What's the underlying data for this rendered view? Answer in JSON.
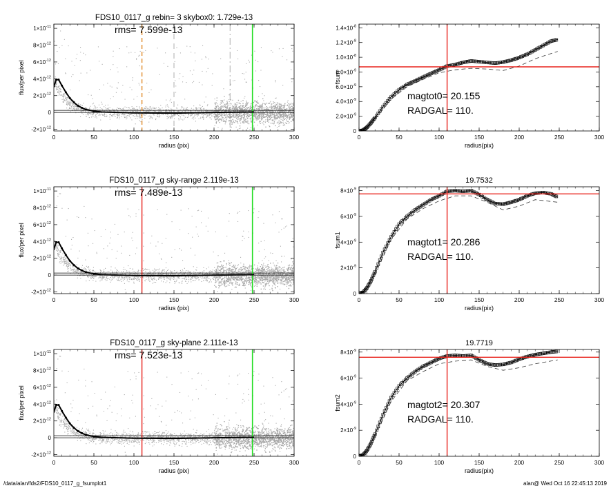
{
  "footer": {
    "left": "/data/alan/fds2/FDS10_0117_g_fsumplot1",
    "right": "alan@  Wed Oct 16 22:45:13 2019"
  },
  "colors": {
    "points": "#a8a8a8",
    "profile": "#000000",
    "red": "#e8211a",
    "green": "#22dd22",
    "orange": "#e08a28",
    "gray_line": "#999999"
  },
  "chart_data": [
    {
      "type": "scatter",
      "panel": "left-1",
      "title": "FDS10_0117_g rebin= 3    skybox0:  1.729e-13",
      "annotation": "rms= 7.599e-13",
      "xlabel": "radius (pix)",
      "ylabel": "flux/per pixel",
      "xlim": [
        0,
        300
      ],
      "ylim": [
        -2.2e-12,
        1.05e-11
      ],
      "xticks": [
        0,
        50,
        100,
        150,
        200,
        250,
        300
      ],
      "yticks": [
        {
          "v": 1e-11,
          "m": "1×10",
          "e": "-11"
        },
        {
          "v": 8e-12,
          "m": "8×10",
          "e": "-12"
        },
        {
          "v": 6e-12,
          "m": "6×10",
          "e": "-12"
        },
        {
          "v": 4e-12,
          "m": "4×10",
          "e": "-12"
        },
        {
          "v": 2e-12,
          "m": "2×10",
          "e": "-12"
        },
        {
          "v": 0,
          "m": "0",
          "e": ""
        },
        {
          "v": -2e-12,
          "m": "-2×10",
          "e": "-12"
        }
      ],
      "profile": {
        "x": [
          0,
          3,
          6,
          10,
          15,
          20,
          25,
          30,
          35,
          40,
          50,
          60,
          80,
          100,
          150,
          200,
          250
        ],
        "y": [
          3.1e-12,
          3.9e-12,
          3.9e-12,
          3.2e-12,
          2.4e-12,
          1.7e-12,
          1.2e-12,
          8e-13,
          5.5e-13,
          3.5e-13,
          1.5e-13,
          5e-14,
          0.0,
          -5e-14,
          -8e-14,
          0.0,
          5e-14
        ]
      },
      "sky_lines": [
        2.5e-13,
        0.0
      ],
      "vlines": [
        {
          "x": 110,
          "style": "orange-dashed"
        },
        {
          "x": 150,
          "style": "gray-dashed"
        },
        {
          "x": 220,
          "style": "gray-dashdot"
        },
        {
          "x": 248,
          "style": "green"
        }
      ]
    },
    {
      "type": "line",
      "panel": "right-1",
      "title": "",
      "xlabel": "radius(pix)",
      "ylabel": "fsum",
      "xlim": [
        0,
        300
      ],
      "ylim": [
        0,
        1.45e-08
      ],
      "xticks": [
        0,
        50,
        100,
        150,
        200,
        250,
        300
      ],
      "yticks": [
        {
          "v": 1.4e-08,
          "m": "1.4×10",
          "e": "-8"
        },
        {
          "v": 1.2e-08,
          "m": "1.2×10",
          "e": "-8"
        },
        {
          "v": 1e-08,
          "m": "1.0×10",
          "e": "-8"
        },
        {
          "v": 8e-09,
          "m": "8.0×10",
          "e": "-9"
        },
        {
          "v": 6e-09,
          "m": "6.0×10",
          "e": "-9"
        },
        {
          "v": 4e-09,
          "m": "4.0×10",
          "e": "-9"
        },
        {
          "v": 2e-09,
          "m": "2.0×10",
          "e": "-9"
        },
        {
          "v": 0,
          "m": "0",
          "e": ""
        }
      ],
      "curve": {
        "x": [
          0,
          5,
          10,
          15,
          20,
          30,
          40,
          50,
          60,
          70,
          80,
          90,
          100,
          110,
          120,
          130,
          140,
          150,
          160,
          170,
          180,
          190,
          200,
          210,
          220,
          230,
          240,
          248
        ],
        "y": [
          0,
          1e-10,
          5e-10,
          1.1e-09,
          1.8e-09,
          3.3e-09,
          4.6e-09,
          5.6e-09,
          6.3e-09,
          6.8e-09,
          7.3e-09,
          7.8e-09,
          8.3e-09,
          8.8e-09,
          9e-09,
          9.3e-09,
          9.5e-09,
          9.4e-09,
          9.3e-09,
          9.2e-09,
          9.35e-09,
          9.6e-09,
          9.95e-09,
          1.04e-08,
          1.1e-08,
          1.16e-08,
          1.22e-08,
          1.24e-08
        ]
      },
      "dashed": {
        "x": [
          20,
          40,
          60,
          80,
          100,
          120,
          140,
          160,
          180,
          200,
          220,
          248
        ],
        "y": [
          1.6e-09,
          4.3e-09,
          6e-09,
          7e-09,
          7.9e-09,
          8.3e-09,
          8.5e-09,
          8.4e-09,
          8.2e-09,
          8.8e-09,
          9.8e-09,
          1.08e-08
        ]
      },
      "hline": 8.7e-09,
      "vline": 110,
      "annotations": [
        "magtot0=  20.155",
        "RADGAL=   110."
      ]
    },
    {
      "type": "scatter",
      "panel": "left-2",
      "title": "FDS10_0117_g sky-range  2.119e-13",
      "annotation": "rms= 7.489e-13",
      "xlabel": "radius (pix)",
      "ylabel": "flux/per pixel",
      "xlim": [
        0,
        300
      ],
      "ylim": [
        -2.2e-12,
        1.05e-11
      ],
      "xticks": [
        0,
        50,
        100,
        150,
        200,
        250,
        300
      ],
      "yticks": [
        {
          "v": 1e-11,
          "m": "1×10",
          "e": "-11"
        },
        {
          "v": 8e-12,
          "m": "8×10",
          "e": "-12"
        },
        {
          "v": 6e-12,
          "m": "6×10",
          "e": "-12"
        },
        {
          "v": 4e-12,
          "m": "4×10",
          "e": "-12"
        },
        {
          "v": 2e-12,
          "m": "2×10",
          "e": "-12"
        },
        {
          "v": 0,
          "m": "0",
          "e": ""
        },
        {
          "v": -2e-12,
          "m": "-2×10",
          "e": "-12"
        }
      ],
      "profile": {
        "x": [
          0,
          3,
          6,
          10,
          15,
          20,
          25,
          30,
          35,
          40,
          50,
          60,
          80,
          100,
          150,
          200,
          250
        ],
        "y": [
          3.1e-12,
          3.9e-12,
          3.9e-12,
          3.2e-12,
          2.4e-12,
          1.7e-12,
          1.2e-12,
          8e-13,
          5.5e-13,
          3.5e-13,
          1.5e-13,
          5e-14,
          0.0,
          -5e-14,
          -8e-14,
          0.0,
          5e-14
        ]
      },
      "sky_lines": [
        2.5e-13,
        0.0
      ],
      "vlines": [
        {
          "x": 110,
          "style": "red"
        },
        {
          "x": 248,
          "style": "green"
        }
      ]
    },
    {
      "type": "line",
      "panel": "right-2",
      "title": "19.7532",
      "xlabel": "radius(pix)",
      "ylabel": "fsum1",
      "xlim": [
        0,
        300
      ],
      "ylim": [
        0,
        8.3e-09
      ],
      "xticks": [
        0,
        50,
        100,
        150,
        200,
        250,
        300
      ],
      "yticks": [
        {
          "v": 8e-09,
          "m": "8×10",
          "e": "-9"
        },
        {
          "v": 6e-09,
          "m": "6×10",
          "e": "-9"
        },
        {
          "v": 4e-09,
          "m": "4×10",
          "e": "-9"
        },
        {
          "v": 2e-09,
          "m": "2×10",
          "e": "-9"
        },
        {
          "v": 0,
          "m": "0",
          "e": ""
        }
      ],
      "curve": {
        "x": [
          0,
          5,
          10,
          15,
          20,
          30,
          40,
          50,
          60,
          70,
          80,
          90,
          100,
          110,
          120,
          130,
          140,
          150,
          160,
          170,
          180,
          190,
          200,
          210,
          220,
          230,
          240,
          248
        ],
        "y": [
          0,
          1e-10,
          4.5e-10,
          1e-09,
          1.7e-09,
          3.2e-09,
          4.4e-09,
          5.4e-09,
          6e-09,
          6.5e-09,
          6.9e-09,
          7.3e-09,
          7.6e-09,
          7.95e-09,
          8e-09,
          7.95e-09,
          8e-09,
          7.7e-09,
          7.3e-09,
          7e-09,
          6.95e-09,
          7.1e-09,
          7.3e-09,
          7.6e-09,
          7.8e-09,
          7.85e-09,
          7.75e-09,
          7.5e-09
        ]
      },
      "dashed": {
        "x": [
          20,
          40,
          60,
          80,
          100,
          120,
          140,
          160,
          180,
          200,
          220,
          248
        ],
        "y": [
          1.5e-09,
          4.2e-09,
          5.8e-09,
          6.6e-09,
          7.2e-09,
          7.6e-09,
          7.6e-09,
          7.1e-09,
          6.5e-09,
          6.8e-09,
          7.3e-09,
          7.1e-09
        ]
      },
      "hline": 7.75e-09,
      "vline": 110,
      "annotations": [
        "magtot1=  20.286",
        "RADGAL=   110."
      ]
    },
    {
      "type": "scatter",
      "panel": "left-3",
      "title": "FDS10_0117_g sky-plane  2.111e-13",
      "annotation": "rms= 7.523e-13",
      "xlabel": "radius (pix)",
      "ylabel": "flux/per pixel",
      "xlim": [
        0,
        300
      ],
      "ylim": [
        -2.2e-12,
        1.05e-11
      ],
      "xticks": [
        0,
        50,
        100,
        150,
        200,
        250,
        300
      ],
      "yticks": [
        {
          "v": 1e-11,
          "m": "1×10",
          "e": "-11"
        },
        {
          "v": 8e-12,
          "m": "8×10",
          "e": "-12"
        },
        {
          "v": 6e-12,
          "m": "6×10",
          "e": "-12"
        },
        {
          "v": 4e-12,
          "m": "4×10",
          "e": "-12"
        },
        {
          "v": 2e-12,
          "m": "2×10",
          "e": "-12"
        },
        {
          "v": 0,
          "m": "0",
          "e": ""
        },
        {
          "v": -2e-12,
          "m": "-2×10",
          "e": "-12"
        }
      ],
      "profile": {
        "x": [
          0,
          3,
          6,
          10,
          15,
          20,
          25,
          30,
          35,
          40,
          50,
          60,
          80,
          100,
          150,
          200,
          250
        ],
        "y": [
          3.1e-12,
          3.9e-12,
          3.9e-12,
          3.2e-12,
          2.4e-12,
          1.7e-12,
          1.2e-12,
          8e-13,
          5.5e-13,
          3.5e-13,
          1.5e-13,
          5e-14,
          0.0,
          -5e-14,
          -8e-14,
          0.0,
          5e-14
        ]
      },
      "sky_lines": [
        2.5e-13,
        0.0
      ],
      "vlines": [
        {
          "x": 110,
          "style": "red"
        },
        {
          "x": 248,
          "style": "green"
        }
      ]
    },
    {
      "type": "line",
      "panel": "right-3",
      "title": "19.7719",
      "xlabel": "radius(pix)",
      "ylabel": "fsum2",
      "xlim": [
        0,
        300
      ],
      "ylim": [
        0,
        8.2e-09
      ],
      "xticks": [
        0,
        50,
        100,
        150,
        200,
        250,
        300
      ],
      "yticks": [
        {
          "v": 8e-09,
          "m": "8×10",
          "e": "-9"
        },
        {
          "v": 6e-09,
          "m": "6×10",
          "e": "-9"
        },
        {
          "v": 4e-09,
          "m": "4×10",
          "e": "-9"
        },
        {
          "v": 2e-09,
          "m": "2×10",
          "e": "-9"
        },
        {
          "v": 0,
          "m": "0",
          "e": ""
        }
      ],
      "curve": {
        "x": [
          0,
          5,
          10,
          15,
          20,
          30,
          40,
          50,
          60,
          70,
          80,
          90,
          100,
          110,
          120,
          130,
          140,
          150,
          160,
          170,
          180,
          190,
          200,
          210,
          220,
          230,
          240,
          248
        ],
        "y": [
          0,
          1e-10,
          4.5e-10,
          1e-09,
          1.7e-09,
          3.2e-09,
          4.5e-09,
          5.4e-09,
          6e-09,
          6.5e-09,
          6.9e-09,
          7.2e-09,
          7.5e-09,
          7.7e-09,
          7.75e-09,
          7.7e-09,
          7.75e-09,
          7.4e-09,
          7.1e-09,
          7e-09,
          7.05e-09,
          7.2e-09,
          7.45e-09,
          7.65e-09,
          7.8e-09,
          7.9e-09,
          8e-09,
          8.05e-09
        ]
      },
      "dashed": {
        "x": [
          20,
          40,
          60,
          80,
          100,
          120,
          140,
          160,
          180,
          200,
          220,
          248
        ],
        "y": [
          1.5e-09,
          4.2e-09,
          5.8e-09,
          6.5e-09,
          7.1e-09,
          7.3e-09,
          7.4e-09,
          6.9e-09,
          6.6e-09,
          6.8e-09,
          7.1e-09,
          7.4e-09
        ]
      },
      "hline": 7.6e-09,
      "vline": 110,
      "annotations": [
        "magtot2=  20.307",
        "RADGAL=   110."
      ]
    }
  ]
}
